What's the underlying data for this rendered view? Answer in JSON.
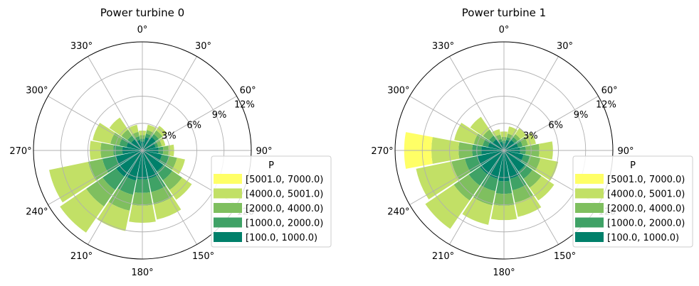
{
  "chart_data": [
    {
      "type": "windrose",
      "title": "Power turbine 0",
      "angle_ticks": [
        "0°",
        "30°",
        "60°",
        "90°",
        "120°",
        "150°",
        "180°",
        "210°",
        "240°",
        "270°",
        "300°",
        "330°"
      ],
      "radial_ticks": [
        "3%",
        "6%",
        "9%",
        "12%"
      ],
      "rmax": 12,
      "legend": {
        "title": "P",
        "placement": "lower-right"
      },
      "sector_width_deg": 22.5,
      "directions": [
        0,
        22.5,
        45,
        67.5,
        90,
        112.5,
        135,
        157.5,
        180,
        202.5,
        225,
        247.5,
        270,
        292.5,
        315,
        337.5
      ],
      "series": [
        {
          "name": "[100.0, 1000.0)",
          "color": "#00806a",
          "values": [
            1.0,
            1.5,
            1.8,
            1.5,
            1.8,
            2.2,
            2.8,
            3.2,
            3.2,
            3.4,
            3.5,
            3.0,
            2.2,
            1.8,
            1.5,
            1.2
          ]
        },
        {
          "name": "[1000.0, 2000.0)",
          "color": "#3fa266",
          "values": [
            0.3,
            0.4,
            0.4,
            0.3,
            0.5,
            0.8,
            1.2,
            1.5,
            1.5,
            1.6,
            1.8,
            1.5,
            1.0,
            0.8,
            0.5,
            0.4
          ]
        },
        {
          "name": "[2000.0, 4000.0)",
          "color": "#7fbf5f",
          "values": [
            0.4,
            0.4,
            0.5,
            0.4,
            0.6,
            0.9,
            1.3,
            1.4,
            1.4,
            1.8,
            2.2,
            1.6,
            1.4,
            1.0,
            0.8,
            0.5
          ]
        },
        {
          "name": "[4000.0, 5001.0)",
          "color": "#c2e066",
          "values": [
            0.5,
            0.6,
            0.6,
            0.4,
            0.6,
            0.9,
            1.3,
            1.7,
            1.9,
            2.3,
            3.5,
            4.4,
            1.2,
            2.0,
            1.6,
            0.8
          ]
        },
        {
          "name": "[5001.0, 7000.0)",
          "color": "#ffff66",
          "values": [
            0,
            0,
            0,
            0,
            0,
            0,
            0,
            0,
            0,
            0,
            0,
            0,
            0,
            0,
            0,
            0
          ]
        }
      ]
    },
    {
      "type": "windrose",
      "title": "Power turbine 1",
      "angle_ticks": [
        "0°",
        "30°",
        "60°",
        "90°",
        "120°",
        "150°",
        "180°",
        "210°",
        "240°",
        "270°",
        "300°",
        "330°"
      ],
      "radial_ticks": [
        "3%",
        "6%",
        "9%",
        "12%"
      ],
      "rmax": 12,
      "legend": {
        "title": "P",
        "placement": "lower-right"
      },
      "sector_width_deg": 22.5,
      "directions": [
        0,
        22.5,
        45,
        67.5,
        90,
        112.5,
        135,
        157.5,
        180,
        202.5,
        225,
        247.5,
        270,
        292.5,
        315,
        337.5
      ],
      "series": [
        {
          "name": "[100.0, 1000.0)",
          "color": "#00806a",
          "values": [
            0.8,
            1.2,
            1.4,
            1.6,
            1.8,
            2.2,
            2.8,
            3.2,
            3.4,
            3.2,
            3.2,
            3.0,
            2.5,
            1.8,
            1.5,
            1.0
          ]
        },
        {
          "name": "[1000.0, 2000.0)",
          "color": "#3fa266",
          "values": [
            0.3,
            0.3,
            0.4,
            0.5,
            0.6,
            0.7,
            1.0,
            1.3,
            1.4,
            1.4,
            1.5,
            1.4,
            1.0,
            0.6,
            0.5,
            0.3
          ]
        },
        {
          "name": "[2000.0, 4000.0)",
          "color": "#7fbf5f",
          "values": [
            0.4,
            0.4,
            0.4,
            0.6,
            1.5,
            1.2,
            1.2,
            1.4,
            1.3,
            1.6,
            2.0,
            1.5,
            1.5,
            1.0,
            0.8,
            0.5
          ]
        },
        {
          "name": "[4000.0, 5001.0)",
          "color": "#c2e066",
          "values": [
            0.6,
            0.8,
            0.8,
            0.9,
            1.5,
            2.0,
            1.7,
            1.6,
            1.6,
            2.2,
            3.8,
            4.0,
            3.0,
            2.2,
            1.7,
            0.6
          ]
        },
        {
          "name": "[5001.0, 7000.0)",
          "color": "#ffff66",
          "values": [
            0,
            0,
            0,
            0,
            0,
            0,
            0,
            0,
            0,
            0,
            0,
            0,
            3.0,
            0,
            0,
            0
          ]
        }
      ]
    }
  ]
}
